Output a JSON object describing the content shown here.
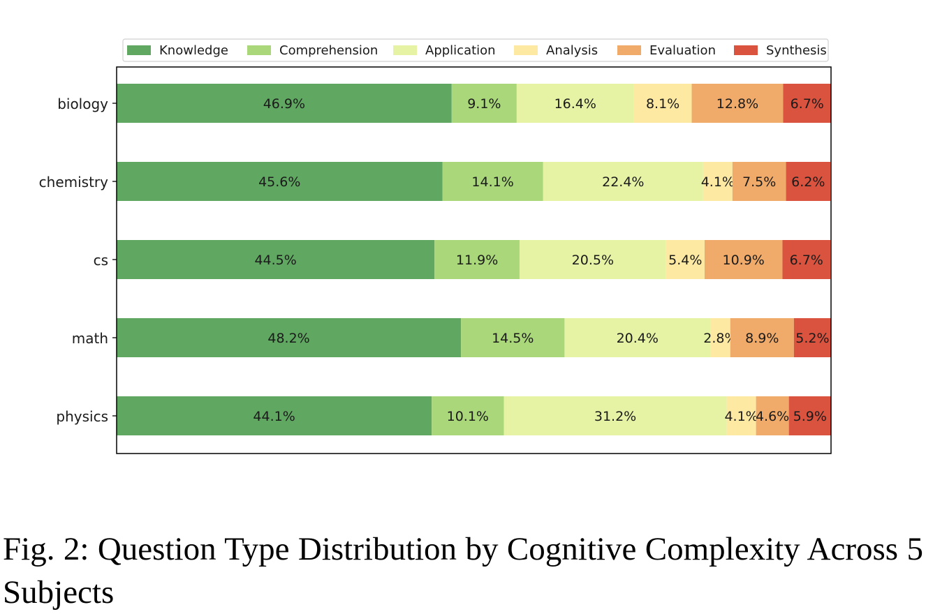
{
  "chart_data": {
    "type": "bar",
    "orientation": "horizontal",
    "stacked": true,
    "normalized_percent": true,
    "categories": [
      "biology",
      "chemistry",
      "cs",
      "math",
      "physics"
    ],
    "series": [
      {
        "name": "Knowledge",
        "color": "#60a862",
        "values": [
          46.9,
          45.6,
          44.5,
          48.2,
          44.1
        ]
      },
      {
        "name": "Comprehension",
        "color": "#a9d77a",
        "values": [
          9.1,
          14.1,
          11.9,
          14.5,
          10.1
        ]
      },
      {
        "name": "Application",
        "color": "#e6f3a5",
        "values": [
          16.4,
          22.4,
          20.5,
          20.4,
          31.2
        ]
      },
      {
        "name": "Analysis",
        "color": "#fde9a2",
        "values": [
          8.1,
          4.1,
          5.4,
          2.8,
          4.1
        ]
      },
      {
        "name": "Evaluation",
        "color": "#f0ab6b",
        "values": [
          12.8,
          7.5,
          10.9,
          8.9,
          4.6
        ]
      },
      {
        "name": "Synthesis",
        "color": "#d9533f",
        "values": [
          6.7,
          6.2,
          6.7,
          5.2,
          5.9
        ]
      }
    ],
    "xlim": [
      0,
      100
    ],
    "legend": "top",
    "grid": false,
    "title": "",
    "xlabel": "",
    "ylabel": ""
  },
  "caption": "Fig. 2: Question Type Distribution by Cognitive Complexity Across 5 Subjects"
}
